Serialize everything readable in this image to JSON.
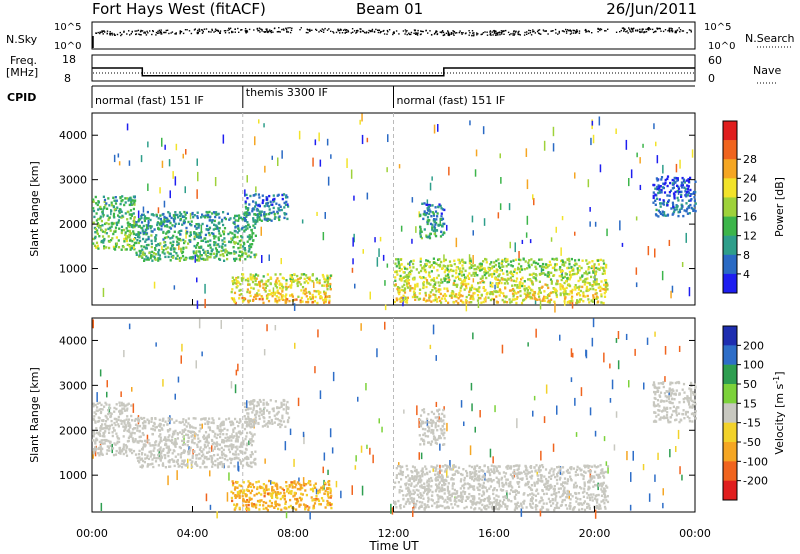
{
  "header": {
    "station": "Fort Hays West (fitACF)",
    "beam": "Beam 01",
    "date": "26/Jun/2011"
  },
  "noise_panel": {
    "left_label": "N.Sky",
    "right_label": "N.Search",
    "left_ticks": [
      "10^5",
      "10^0"
    ],
    "right_ticks": [
      "10^5",
      "10^0"
    ]
  },
  "freq_panel": {
    "left_label_line1": "Freq.",
    "left_label_line2": "[MHz]",
    "right_label": "Nave",
    "left_ticks": [
      18,
      8
    ],
    "right_ticks": [
      60,
      0
    ],
    "freq_steps": [
      {
        "t0": 0.0,
        "t1": 2.0,
        "value": 13
      },
      {
        "t0": 2.0,
        "t1": 14.0,
        "value": 10
      },
      {
        "t0": 14.0,
        "t1": 24.0,
        "value": 13
      }
    ]
  },
  "cpid_panel": {
    "label": "CPID",
    "segments": [
      {
        "start": 0.0,
        "end": 6.0,
        "text": "normal (fast) 151 IF"
      },
      {
        "start": 6.0,
        "end": 12.0,
        "text": "themis 3300 IF"
      },
      {
        "start": 12.0,
        "end": 24.0,
        "text": "normal (fast) 151 IF"
      }
    ]
  },
  "chart_data": [
    {
      "type": "heatmap",
      "title": "",
      "xlabel": "Time UT",
      "ylabel": "Slant Range [km]",
      "xlim": [
        0,
        24
      ],
      "ylim": [
        180,
        4500
      ],
      "x_tick_labels": [
        "00:00",
        "04:00",
        "08:00",
        "12:00",
        "16:00",
        "20:00",
        "00:00"
      ],
      "y_ticks": [
        1000,
        2000,
        3000,
        4000
      ],
      "colorbar": {
        "label": "Power [dB]",
        "ticks": [
          4,
          8,
          12,
          16,
          20,
          24,
          28
        ],
        "colors": [
          "#1e1ef0",
          "#2a6ac4",
          "#2e9e8a",
          "#3cb54a",
          "#9ed23a",
          "#f2e32a",
          "#f5a623",
          "#f0641e",
          "#e01e1e"
        ]
      },
      "regions": [
        {
          "t0": 0.0,
          "t1": 1.7,
          "r0": 1450,
          "r1": 2650,
          "level": 14
        },
        {
          "t0": 1.7,
          "t1": 6.5,
          "r0": 1200,
          "r1": 2300,
          "level": 12
        },
        {
          "t0": 6.0,
          "t1": 7.8,
          "r0": 2100,
          "r1": 2700,
          "level": 8
        },
        {
          "t0": 5.5,
          "t1": 9.5,
          "r0": 250,
          "r1": 900,
          "level": 22
        },
        {
          "t0": 12.0,
          "t1": 20.5,
          "r0": 250,
          "r1": 1250,
          "level": 20
        },
        {
          "t0": 13.0,
          "t1": 14.0,
          "r0": 1700,
          "r1": 2500,
          "level": 10
        },
        {
          "t0": 22.3,
          "t1": 24.0,
          "r0": 2200,
          "r1": 3100,
          "level": 6
        }
      ]
    },
    {
      "type": "heatmap",
      "title": "",
      "xlabel": "Time UT",
      "ylabel": "Slant Range [km]",
      "xlim": [
        0,
        24
      ],
      "ylim": [
        180,
        4500
      ],
      "x_tick_labels": [
        "00:00",
        "04:00",
        "08:00",
        "12:00",
        "16:00",
        "20:00",
        "00:00"
      ],
      "y_ticks": [
        1000,
        2000,
        3000,
        4000
      ],
      "colorbar": {
        "label": "Velocity [m s^-1]",
        "ticks": [
          "200",
          "100",
          "50",
          "15",
          "-15",
          "-50",
          "-100",
          "-200"
        ],
        "colors": [
          "#1e2eb0",
          "#2e6ec8",
          "#2e9e50",
          "#7cd23a",
          "#c8c8c0",
          "#f2d22a",
          "#f5a623",
          "#f0641e",
          "#e01e1e"
        ]
      },
      "regions": [
        {
          "t0": 0.0,
          "t1": 1.7,
          "r0": 1450,
          "r1": 2650,
          "level": 0
        },
        {
          "t0": 1.7,
          "t1": 6.5,
          "r0": 1200,
          "r1": 2300,
          "level": 0
        },
        {
          "t0": 6.0,
          "t1": 7.8,
          "r0": 2100,
          "r1": 2700,
          "level": 0
        },
        {
          "t0": 5.5,
          "t1": 9.5,
          "r0": 250,
          "r1": 900,
          "level": -60
        },
        {
          "t0": 12.0,
          "t1": 20.5,
          "r0": 250,
          "r1": 1250,
          "level": 0
        },
        {
          "t0": 13.0,
          "t1": 14.0,
          "r0": 1700,
          "r1": 2500,
          "level": 0
        },
        {
          "t0": 22.3,
          "t1": 24.0,
          "r0": 2200,
          "r1": 3100,
          "level": 0
        }
      ]
    }
  ]
}
